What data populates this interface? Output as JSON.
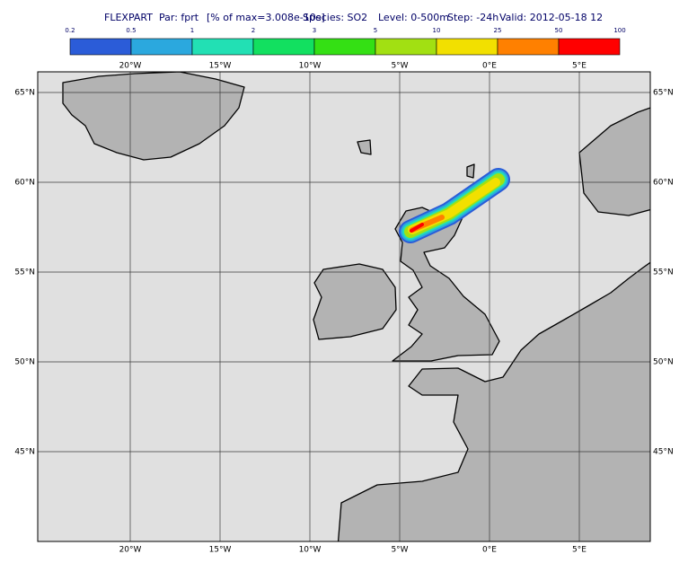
{
  "title": {
    "model": "FLEXPART",
    "parameter": "Par: fprt",
    "scale": "[% of max=3.008e-10s]",
    "species": "Species: SO2",
    "level": "Level: 0-500m",
    "step": "Step: -24h",
    "valid": "Valid: 2012-05-18 12"
  },
  "colorbar": {
    "boundaries": [
      0.2,
      0.5,
      1,
      2,
      3,
      5,
      10,
      25,
      50,
      100
    ],
    "colors": [
      "#2b5cd8",
      "#2ba8de",
      "#22e0b4",
      "#12e060",
      "#34e014",
      "#a2e012",
      "#f2e000",
      "#ff8000",
      "#ff0000"
    ]
  },
  "map": {
    "xlim": [
      -25.15,
      8.95
    ],
    "ylim": [
      40,
      66.15
    ],
    "xticks": [
      {
        "value": -20,
        "label": "20°W"
      },
      {
        "value": -15,
        "label": "15°W"
      },
      {
        "value": -10,
        "label": "10°W"
      },
      {
        "value": -5,
        "label": "5°W"
      },
      {
        "value": 0,
        "label": "0°E"
      },
      {
        "value": 5,
        "label": "5°E"
      }
    ],
    "yticks": [
      {
        "value": 45,
        "label": "45°N"
      },
      {
        "value": 50,
        "label": "50°N"
      },
      {
        "value": 55,
        "label": "55°N"
      },
      {
        "value": 60,
        "label": "60°N"
      },
      {
        "value": 65,
        "label": "65°N"
      }
    ],
    "grid": true
  }
}
